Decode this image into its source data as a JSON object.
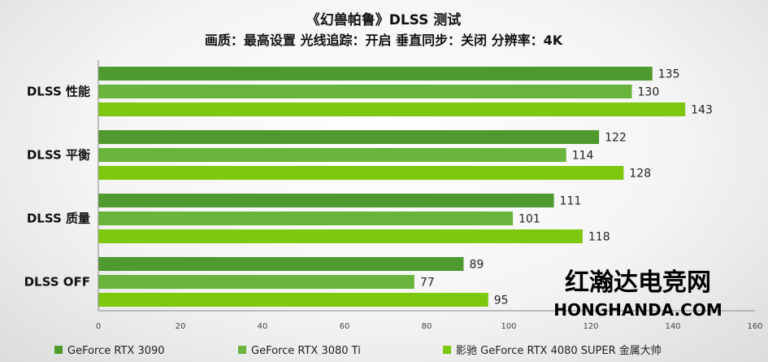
{
  "chart_data": {
    "type": "bar",
    "orientation": "horizontal",
    "title": "《幻兽帕鲁》DLSS 测试",
    "subtitle": "画质：最高设置 光线追踪：开启 垂直同步：关闭 分辨率：4K",
    "categories": [
      "DLSS 性能",
      "DLSS 平衡",
      "DLSS 质量",
      "DLSS  OFF"
    ],
    "series": [
      {
        "name": "GeForce RTX 3090",
        "values": [
          135,
          122,
          111,
          89
        ],
        "color": "#4f9a2e"
      },
      {
        "name": "GeForce RTX 3080 Ti",
        "values": [
          130,
          114,
          101,
          77
        ],
        "color": "#69b43b"
      },
      {
        "name": "影驰 GeForce RTX 4080 SUPER 金属大帅",
        "values": [
          143,
          128,
          118,
          95
        ],
        "color": "#7dc80f"
      }
    ],
    "xlim": [
      0,
      160
    ],
    "xticks": [
      "0",
      "20",
      "40",
      "60",
      "80",
      "100",
      "120",
      "140",
      "160"
    ],
    "legend_position": "bottom",
    "grid": false
  },
  "watermark": {
    "name": "红瀚达电竞网",
    "domain": "HONGHANDA.COM"
  }
}
